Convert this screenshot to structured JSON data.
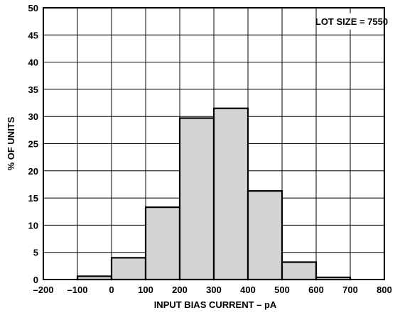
{
  "chart_data": {
    "type": "bar",
    "bins": [
      {
        "x0": -100,
        "x1": 0,
        "value": 0.6
      },
      {
        "x0": 0,
        "x1": 100,
        "value": 4.0
      },
      {
        "x0": 100,
        "x1": 200,
        "value": 13.3
      },
      {
        "x0": 200,
        "x1": 300,
        "value": 29.7
      },
      {
        "x0": 300,
        "x1": 400,
        "value": 31.5
      },
      {
        "x0": 400,
        "x1": 500,
        "value": 16.3
      },
      {
        "x0": 500,
        "x1": 600,
        "value": 3.2
      },
      {
        "x0": 600,
        "x1": 700,
        "value": 0.4
      }
    ],
    "xlabel": "INPUT BIAS CURRENT – pA",
    "ylabel": "% OF UNITS",
    "xlim": [
      -200,
      800
    ],
    "ylim": [
      0,
      50
    ],
    "xticks": [
      -200,
      -100,
      0,
      100,
      200,
      300,
      400,
      500,
      600,
      700,
      800
    ],
    "xtick_labels": [
      "–200",
      "–100",
      "0",
      "100",
      "200",
      "300",
      "400",
      "500",
      "600",
      "700",
      "800"
    ],
    "yticks": [
      0,
      5,
      10,
      15,
      20,
      25,
      30,
      35,
      40,
      45,
      50
    ],
    "ytick_labels": [
      "0",
      "5",
      "10",
      "15",
      "20",
      "25",
      "30",
      "35",
      "40",
      "45",
      "50"
    ],
    "grid": true,
    "annotation": "LOT SIZE = 7550",
    "annotation_position": "top-right",
    "bar_color": "#d3d4d6",
    "edge_color": "#000000"
  }
}
